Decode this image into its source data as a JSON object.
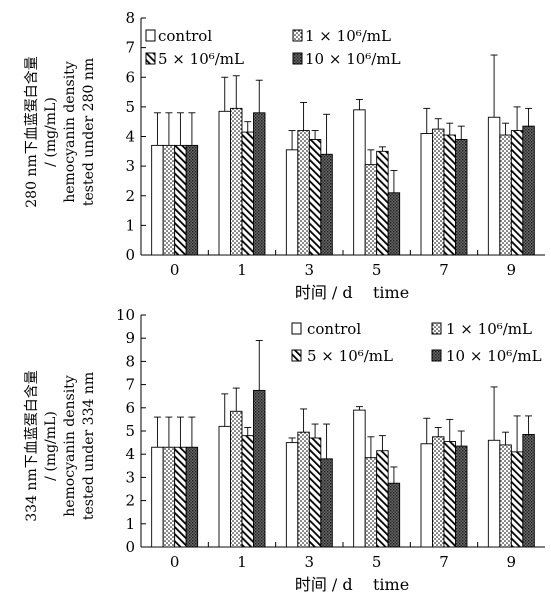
{
  "chart_data": [
    {
      "type": "bar",
      "categories": [
        "0",
        "1",
        "3",
        "5",
        "7",
        "9"
      ],
      "xlabel": "时间 / d    time",
      "ylabel_lines": [
        "280 nm下血蓝蛋白含量",
        "/ (mg/mL)",
        "hemocyanin density",
        "tested under 280 nm"
      ],
      "ylim": [
        0,
        8
      ],
      "yticks": [
        "0",
        "1",
        "2",
        "3",
        "4",
        "5",
        "6",
        "7",
        "8"
      ],
      "legend_position": "top",
      "series": [
        {
          "name": "control",
          "values": [
            3.7,
            4.85,
            3.55,
            4.9,
            4.1,
            4.65
          ],
          "errors": [
            1.1,
            1.15,
            0.65,
            0.35,
            0.85,
            2.1
          ]
        },
        {
          "name": "1 × 10⁶/mL",
          "values": [
            3.7,
            4.95,
            4.2,
            3.05,
            4.25,
            4.05
          ],
          "errors": [
            1.1,
            1.1,
            0.95,
            0.5,
            0.35,
            0.4
          ]
        },
        {
          "name": "5 × 10⁶/mL",
          "values": [
            3.7,
            4.15,
            3.9,
            3.5,
            4.05,
            4.2
          ],
          "errors": [
            1.1,
            0.35,
            0.3,
            0.15,
            0.4,
            0.8
          ]
        },
        {
          "name": "10 × 10⁶/mL",
          "values": [
            3.7,
            4.8,
            3.4,
            2.1,
            3.9,
            4.35
          ],
          "errors": [
            1.1,
            1.1,
            1.35,
            0.75,
            0.45,
            0.6
          ]
        }
      ]
    },
    {
      "type": "bar",
      "categories": [
        "0",
        "1",
        "3",
        "5",
        "7",
        "9"
      ],
      "xlabel": "时间 / d    time",
      "ylabel_lines": [
        "334 nm下血蓝蛋白含量",
        "/ (mg/mL)",
        "hemocyanin density",
        "tested under 334 nm"
      ],
      "ylim": [
        0,
        10
      ],
      "yticks": [
        "0",
        "1",
        "2",
        "3",
        "4",
        "5",
        "6",
        "7",
        "8",
        "9",
        "10"
      ],
      "legend_position": "top",
      "series": [
        {
          "name": "control",
          "values": [
            4.3,
            5.2,
            4.5,
            5.9,
            4.45,
            4.6
          ],
          "errors": [
            1.3,
            1.4,
            0.2,
            0.15,
            1.1,
            2.3
          ]
        },
        {
          "name": "1 × 10⁶/mL",
          "values": [
            4.3,
            5.85,
            4.95,
            3.85,
            4.75,
            4.4
          ],
          "errors": [
            1.3,
            1.0,
            1.0,
            0.9,
            0.4,
            0.55
          ]
        },
        {
          "name": "5 × 10⁶/mL",
          "values": [
            4.3,
            4.8,
            4.7,
            4.15,
            4.55,
            4.1
          ],
          "errors": [
            1.3,
            0.35,
            0.6,
            0.65,
            0.95,
            1.55
          ]
        },
        {
          "name": "10 × 10⁶/mL",
          "values": [
            4.3,
            6.75,
            3.8,
            2.75,
            4.35,
            4.85
          ],
          "errors": [
            1.3,
            2.15,
            1.5,
            0.7,
            0.65,
            0.8
          ]
        }
      ]
    }
  ]
}
